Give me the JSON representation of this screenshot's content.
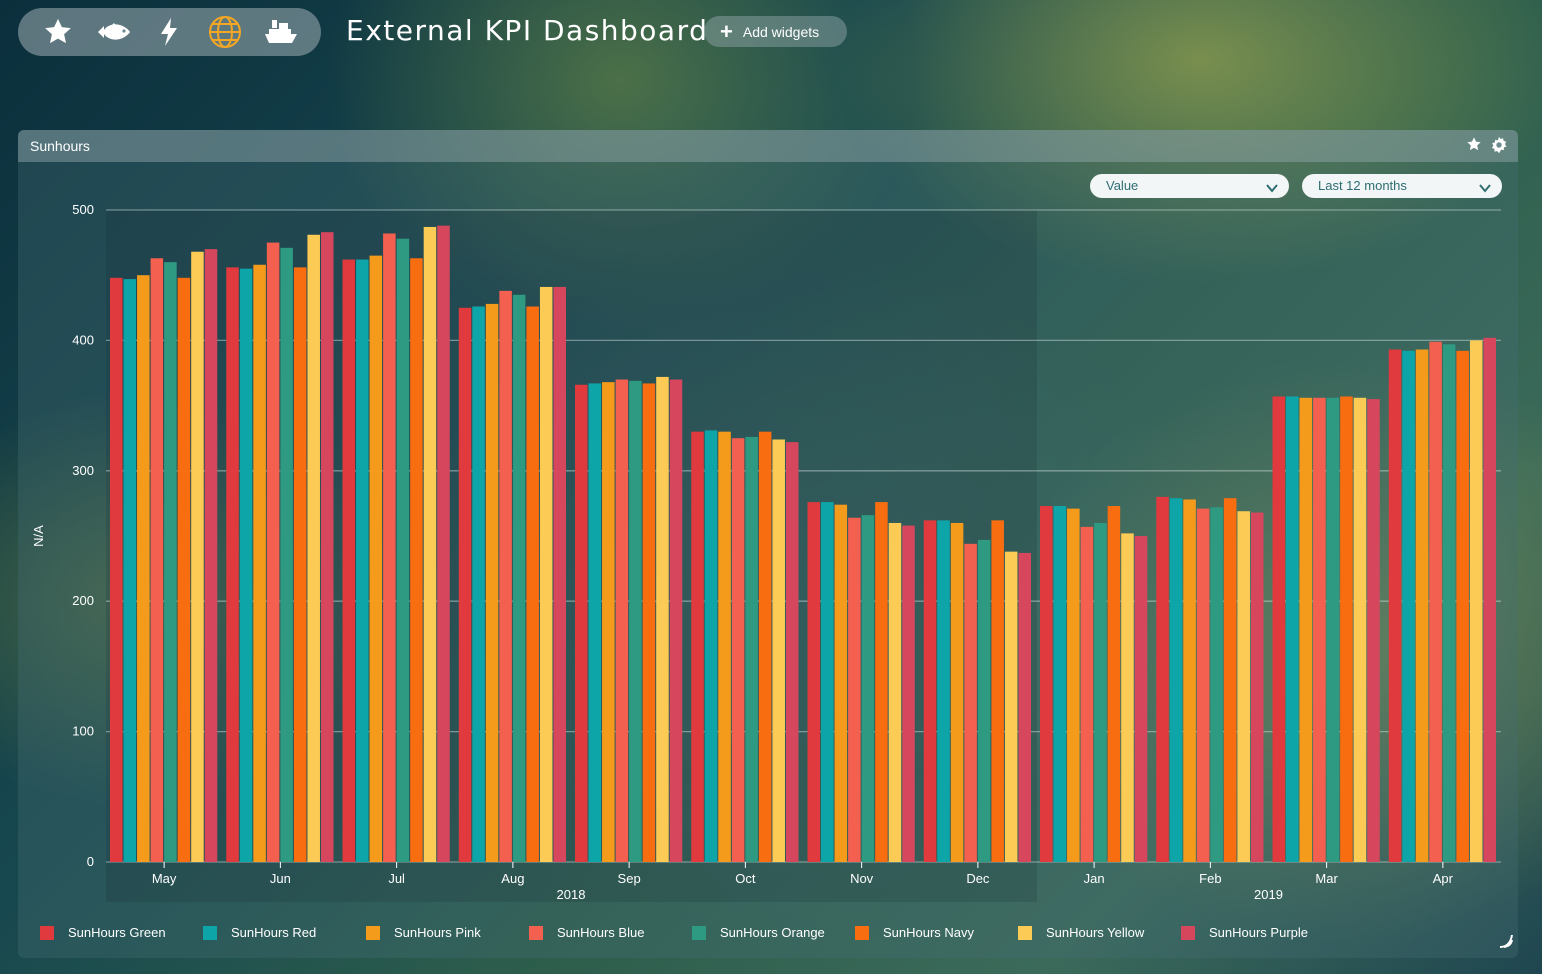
{
  "toolbar": {
    "icons": [
      "star-icon",
      "fish-icon",
      "lightning-icon",
      "globe-icon",
      "ship-icon"
    ],
    "globe_color": "#f5a623"
  },
  "header": {
    "title": "External KPI Dashboard",
    "add_widgets_label": "Add widgets"
  },
  "widget": {
    "title": "Sunhours",
    "metric_select": "Value",
    "period_select": "Last 12 months"
  },
  "chart_data": {
    "type": "bar",
    "ylabel": "N/A",
    "ylim": [
      0,
      500
    ],
    "yticks": [
      0,
      100,
      200,
      300,
      400,
      500
    ],
    "categories": [
      "May",
      "Jun",
      "Jul",
      "Aug",
      "Sep",
      "Oct",
      "Nov",
      "Dec",
      "Jan",
      "Feb",
      "Mar",
      "Apr"
    ],
    "year_labels": [
      {
        "label": "2018",
        "months": [
          "May",
          "Jun",
          "Jul",
          "Aug",
          "Sep",
          "Oct",
          "Nov",
          "Dec"
        ]
      },
      {
        "label": "2019",
        "months": [
          "Jan",
          "Feb",
          "Mar",
          "Apr"
        ]
      }
    ],
    "grid": true,
    "legend_position": "bottom",
    "series": [
      {
        "name": "SunHours Green",
        "color": "#e03a3e",
        "values": [
          448,
          456,
          462,
          425,
          366,
          330,
          276,
          262,
          273,
          280,
          357,
          393
        ]
      },
      {
        "name": "SunHours Red",
        "color": "#0ea5a8",
        "values": [
          447,
          455,
          462,
          426,
          367,
          331,
          276,
          262,
          273,
          279,
          357,
          392
        ]
      },
      {
        "name": "SunHours Pink",
        "color": "#f59b1c",
        "values": [
          450,
          458,
          465,
          428,
          368,
          330,
          274,
          260,
          271,
          278,
          356,
          393
        ]
      },
      {
        "name": "SunHours Blue",
        "color": "#f4604f",
        "values": [
          463,
          475,
          482,
          438,
          370,
          325,
          264,
          244,
          257,
          271,
          356,
          399
        ]
      },
      {
        "name": "SunHours Orange",
        "color": "#2e9a82",
        "values": [
          460,
          471,
          478,
          435,
          369,
          326,
          266,
          247,
          260,
          272,
          356,
          397
        ]
      },
      {
        "name": "SunHours Navy",
        "color": "#f76d10",
        "values": [
          448,
          456,
          463,
          426,
          367,
          330,
          276,
          262,
          273,
          279,
          357,
          392
        ]
      },
      {
        "name": "SunHours Yellow",
        "color": "#fccb55",
        "values": [
          468,
          481,
          487,
          441,
          372,
          324,
          260,
          238,
          252,
          269,
          356,
          400
        ]
      },
      {
        "name": "SunHours Purple",
        "color": "#d6475e",
        "values": [
          470,
          483,
          488,
          441,
          370,
          322,
          258,
          237,
          250,
          268,
          355,
          402
        ]
      }
    ]
  }
}
